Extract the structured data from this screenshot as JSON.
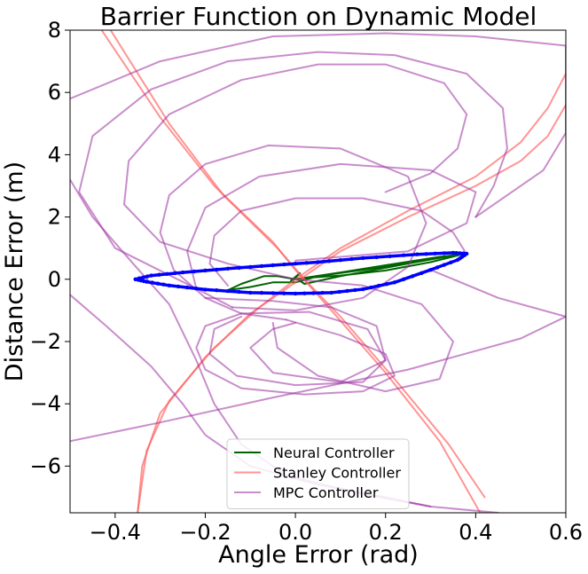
{
  "chart_data": {
    "type": "line",
    "title": "Barrier Function on Dynamic Model",
    "xlabel": "Angle Error (rad)",
    "ylabel": "Distance Error (m)",
    "xlim": [
      -0.5,
      0.6
    ],
    "ylim": [
      -7.5,
      8
    ],
    "xticks": [
      -0.4,
      -0.2,
      0.0,
      0.2,
      0.4,
      0.6
    ],
    "xtick_labels": [
      "−0.4",
      "−0.2",
      "0.0",
      "0.2",
      "0.4",
      "0.6"
    ],
    "yticks": [
      -6,
      -4,
      -2,
      0,
      2,
      4,
      6,
      8
    ],
    "ytick_labels": [
      "−6",
      "−4",
      "−2",
      "0",
      "2",
      "4",
      "6",
      "8"
    ],
    "grid": false,
    "legend_position": "lower-center",
    "series": [
      {
        "name": "Neural Controller",
        "color": "#006400",
        "alpha": 1.0,
        "in_legend": true,
        "lines": [
          [
            [
              0.0,
              0.0
            ],
            [
              0.03,
              0.05
            ],
            [
              0.1,
              0.12
            ],
            [
              0.2,
              0.28
            ],
            [
              0.3,
              0.55
            ],
            [
              0.37,
              0.8
            ],
            [
              0.32,
              0.72
            ],
            [
              0.2,
              0.45
            ],
            [
              0.1,
              0.22
            ],
            [
              0.0,
              0.0
            ],
            [
              -0.04,
              0.1
            ],
            [
              -0.07,
              0.1
            ],
            [
              -0.12,
              -0.15
            ],
            [
              -0.15,
              -0.35
            ],
            [
              -0.1,
              -0.25
            ],
            [
              -0.05,
              -0.1
            ],
            [
              0.0,
              -0.1
            ],
            [
              0.05,
              0.1
            ],
            [
              0.15,
              0.3
            ],
            [
              0.3,
              0.65
            ],
            [
              0.37,
              0.82
            ],
            [
              0.25,
              0.5
            ],
            [
              0.1,
              0.1
            ],
            [
              0.02,
              -0.15
            ],
            [
              0.0,
              0.05
            ],
            [
              0.01,
              0.2
            ],
            [
              -0.01,
              -0.05
            ],
            [
              0.0,
              0.0
            ]
          ]
        ]
      },
      {
        "name": "Stanley Controller",
        "color": "#ff5a5a",
        "alpha": 0.65,
        "in_legend": true,
        "lines": [
          [
            [
              -0.43,
              8.0
            ],
            [
              -0.3,
              5.2
            ],
            [
              -0.18,
              3.0
            ],
            [
              -0.05,
              1.2
            ],
            [
              0.0,
              0.3
            ],
            [
              0.08,
              -1.0
            ],
            [
              0.2,
              -3.0
            ],
            [
              0.32,
              -5.2
            ],
            [
              0.41,
              -7.5
            ]
          ],
          [
            [
              -0.41,
              8.0
            ],
            [
              -0.28,
              5.0
            ],
            [
              -0.16,
              2.7
            ],
            [
              -0.04,
              1.0
            ],
            [
              0.02,
              0.0
            ],
            [
              0.1,
              -1.2
            ],
            [
              0.22,
              -3.2
            ],
            [
              0.34,
              -5.3
            ],
            [
              0.42,
              -7.0
            ]
          ],
          [
            [
              -0.35,
              -7.5
            ],
            [
              -0.34,
              -6.0
            ],
            [
              -0.3,
              -4.3
            ],
            [
              -0.2,
              -2.5
            ],
            [
              -0.1,
              -1.1
            ],
            [
              0.0,
              -0.1
            ],
            [
              0.1,
              0.9
            ],
            [
              0.25,
              2.0
            ],
            [
              0.4,
              3.0
            ],
            [
              0.5,
              3.8
            ],
            [
              0.56,
              4.6
            ],
            [
              0.6,
              5.6
            ]
          ],
          [
            [
              -0.35,
              -7.5
            ],
            [
              -0.33,
              -5.5
            ],
            [
              -0.28,
              -3.9
            ],
            [
              -0.18,
              -2.2
            ],
            [
              -0.08,
              -0.9
            ],
            [
              0.0,
              0.0
            ],
            [
              0.1,
              1.0
            ],
            [
              0.25,
              2.2
            ],
            [
              0.4,
              3.3
            ],
            [
              0.5,
              4.4
            ],
            [
              0.56,
              5.5
            ],
            [
              0.6,
              6.6
            ]
          ]
        ]
      },
      {
        "name": "MPC Controller",
        "color": "#9b30a0",
        "alpha": 0.55,
        "in_legend": true,
        "lines": [
          [
            [
              0.0,
              0.0
            ],
            [
              0.15,
              -0.2
            ],
            [
              0.28,
              -0.8
            ],
            [
              0.35,
              -2.0
            ],
            [
              0.32,
              -3.2
            ],
            [
              0.2,
              -3.6
            ],
            [
              0.05,
              -3.1
            ],
            [
              -0.04,
              -2.2
            ],
            [
              -0.05,
              -1.4
            ]
          ],
          [
            [
              -0.5,
              -5.2
            ],
            [
              -0.3,
              -4.6
            ],
            [
              -0.05,
              -3.8
            ],
            [
              0.25,
              -2.9
            ],
            [
              0.5,
              -1.9
            ],
            [
              0.6,
              -1.2
            ]
          ],
          [
            [
              0.6,
              -1.2
            ],
            [
              0.45,
              -0.6
            ],
            [
              0.3,
              0.3
            ]
          ],
          [
            [
              0.38,
              0.8
            ],
            [
              0.35,
              1.5
            ],
            [
              0.28,
              2.2
            ],
            [
              0.15,
              2.6
            ],
            [
              0.0,
              2.6
            ],
            [
              -0.12,
              2.2
            ],
            [
              -0.18,
              1.4
            ],
            [
              -0.19,
              0.5
            ],
            [
              -0.15,
              -0.2
            ]
          ],
          [
            [
              0.0,
              0.6
            ],
            [
              0.25,
              0.9
            ],
            [
              0.38,
              1.8
            ],
            [
              0.4,
              2.8
            ],
            [
              0.3,
              3.5
            ],
            [
              0.1,
              3.7
            ],
            [
              -0.08,
              3.3
            ],
            [
              -0.2,
              2.3
            ],
            [
              -0.24,
              0.9
            ],
            [
              -0.22,
              -0.3
            ],
            [
              -0.14,
              -0.9
            ]
          ],
          [
            [
              -0.14,
              -0.9
            ],
            [
              0.0,
              -1.0
            ],
            [
              0.15,
              -0.6
            ],
            [
              0.25,
              0.4
            ],
            [
              0.29,
              1.8
            ],
            [
              0.25,
              3.3
            ],
            [
              0.1,
              4.2
            ],
            [
              -0.06,
              4.3
            ],
            [
              -0.2,
              3.7
            ],
            [
              -0.28,
              2.7
            ],
            [
              -0.3,
              1.5
            ],
            [
              -0.27,
              0.3
            ],
            [
              -0.2,
              -0.6
            ],
            [
              -0.12,
              -1.1
            ],
            [
              -0.02,
              -1.3
            ]
          ],
          [
            [
              -0.02,
              -1.3
            ],
            [
              0.1,
              -1.8
            ],
            [
              0.2,
              -2.4
            ],
            [
              0.22,
              -3.1
            ],
            [
              0.15,
              -3.6
            ],
            [
              0.02,
              -3.7
            ],
            [
              -0.12,
              -3.5
            ],
            [
              -0.2,
              -2.9
            ],
            [
              -0.22,
              -2.2
            ],
            [
              -0.2,
              -1.5
            ],
            [
              -0.12,
              -1.1
            ]
          ],
          [
            [
              -0.12,
              -1.1
            ],
            [
              0.03,
              -1.05
            ],
            [
              0.16,
              -1.6
            ],
            [
              0.2,
              -2.6
            ],
            [
              0.15,
              -3.3
            ],
            [
              0.0,
              -3.4
            ],
            [
              -0.13,
              -3.1
            ],
            [
              -0.19,
              -2.4
            ],
            [
              -0.18,
              -1.6
            ],
            [
              -0.12,
              -1.2
            ]
          ],
          [
            [
              -0.2,
              -0.6
            ],
            [
              -0.05,
              -0.7
            ],
            [
              0.08,
              -0.9
            ],
            [
              0.18,
              -1.5
            ],
            [
              0.2,
              -2.6
            ],
            [
              0.1,
              -3.3
            ],
            [
              -0.05,
              -3.0
            ],
            [
              -0.1,
              -2.2
            ],
            [
              -0.05,
              -1.6
            ],
            [
              0.0,
              -1.4
            ]
          ],
          [
            [
              0.0,
              0.0
            ],
            [
              -0.15,
              0.5
            ],
            [
              -0.3,
              1.2
            ],
            [
              -0.38,
              2.4
            ],
            [
              -0.37,
              3.8
            ],
            [
              -0.28,
              5.3
            ],
            [
              -0.12,
              6.4
            ],
            [
              0.05,
              6.9
            ],
            [
              0.2,
              6.9
            ],
            [
              0.33,
              6.3
            ],
            [
              0.38,
              5.3
            ],
            [
              0.36,
              4.2
            ],
            [
              0.3,
              3.4
            ],
            [
              0.2,
              2.8
            ]
          ],
          [
            [
              -0.22,
              -0.3
            ],
            [
              -0.4,
              1.0
            ],
            [
              -0.48,
              2.8
            ],
            [
              -0.45,
              4.6
            ],
            [
              -0.32,
              6.1
            ],
            [
              -0.15,
              7.0
            ],
            [
              0.05,
              7.3
            ],
            [
              0.22,
              7.2
            ],
            [
              0.38,
              6.6
            ],
            [
              0.46,
              5.5
            ],
            [
              0.47,
              4.2
            ],
            [
              0.44,
              3.0
            ],
            [
              0.4,
              2.0
            ]
          ],
          [
            [
              0.4,
              2.0
            ],
            [
              0.55,
              3.5
            ],
            [
              0.6,
              4.7
            ],
            [
              0.6,
              7.5
            ],
            [
              0.4,
              7.8
            ],
            [
              0.2,
              7.9
            ],
            [
              -0.05,
              7.8
            ],
            [
              -0.3,
              7.0
            ],
            [
              -0.5,
              5.8
            ]
          ],
          [
            [
              -0.5,
              3.2
            ],
            [
              -0.45,
              2.0
            ],
            [
              -0.36,
              0.5
            ],
            [
              -0.28,
              -0.8
            ],
            [
              -0.22,
              -2.6
            ],
            [
              -0.18,
              -4.0
            ],
            [
              -0.12,
              -5.3
            ],
            [
              -0.02,
              -6.3
            ],
            [
              0.15,
              -6.9
            ],
            [
              0.3,
              -7.3
            ],
            [
              0.45,
              -7.5
            ]
          ],
          [
            [
              -0.5,
              -0.5
            ],
            [
              -0.42,
              -1.5
            ],
            [
              -0.32,
              -2.8
            ],
            [
              -0.25,
              -4.0
            ],
            [
              -0.2,
              -5.0
            ],
            [
              -0.1,
              -6.0
            ],
            [
              0.05,
              -6.6
            ],
            [
              0.2,
              -7.0
            ],
            [
              0.3,
              -7.3
            ]
          ]
        ]
      },
      {
        "name": "barrier boundary",
        "color": "#0000ff",
        "alpha": 1.0,
        "in_legend": false,
        "lines": [
          [
            [
              -0.355,
              0.0
            ],
            [
              -0.33,
              -0.08
            ],
            [
              -0.28,
              -0.2
            ],
            [
              -0.2,
              -0.33
            ],
            [
              -0.1,
              -0.43
            ],
            [
              0.0,
              -0.46
            ],
            [
              0.08,
              -0.43
            ],
            [
              0.15,
              -0.32
            ],
            [
              0.22,
              -0.1
            ],
            [
              0.3,
              0.3
            ],
            [
              0.36,
              0.62
            ],
            [
              0.38,
              0.82
            ],
            [
              0.35,
              0.85
            ],
            [
              0.27,
              0.8
            ],
            [
              0.15,
              0.68
            ],
            [
              0.05,
              0.55
            ],
            [
              -0.05,
              0.45
            ],
            [
              -0.15,
              0.34
            ],
            [
              -0.25,
              0.22
            ],
            [
              -0.32,
              0.12
            ],
            [
              -0.355,
              0.0
            ]
          ]
        ]
      }
    ]
  }
}
